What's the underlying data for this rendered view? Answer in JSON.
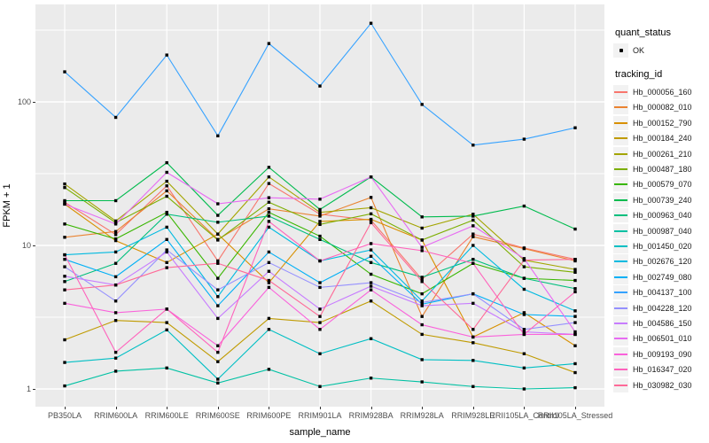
{
  "axes": {
    "y_title": "FPKM + 1",
    "x_title": "sample_name"
  },
  "legend": {
    "quant_title": "quant_status",
    "ok_label": "OK",
    "ok_marker": "black-point",
    "tracking_title": "tracking_id",
    "key_background": "#F2F2F2"
  },
  "panel": {
    "background": "#EBEBEB",
    "gridline_color": "#FFFFFF",
    "tick_label_color": "#4D4D4D",
    "point_color": "#000000"
  },
  "chart_data": {
    "type": "line",
    "title": "",
    "xlabel": "sample_name",
    "ylabel": "FPKM + 1",
    "y_scale": "log10",
    "y_breaks": [
      1,
      10,
      100
    ],
    "y_tick_labels": [
      "1",
      "10",
      "100"
    ],
    "y_minor_breaks": [
      3.162,
      31.62,
      316.2
    ],
    "ylim": [
      1,
      475
    ],
    "grid": "on",
    "legend_position": "right",
    "x_categories": [
      "PB350LA",
      "RRIM600LA",
      "RRIM600LE",
      "RRIM600SE",
      "RRIM600PE",
      "RRIM901LA",
      "RRIM928BA",
      "RRIM928LA",
      "RRIM928LE",
      "RRII105LA_Control",
      "RRII105LA_Stressed"
    ],
    "quant_status": "OK",
    "series": [
      {
        "name": "Hb_000056_160",
        "color": "#F8766D",
        "values": [
          20.0,
          11.9,
          26.0,
          7.8,
          27.0,
          16.5,
          15.0,
          5.8,
          12.0,
          9.6,
          8.0
        ]
      },
      {
        "name": "Hb_000082_010",
        "color": "#EA8331",
        "values": [
          11.4,
          12.5,
          24.0,
          11.0,
          18.0,
          16.0,
          21.6,
          3.2,
          11.5,
          9.5,
          7.8
        ]
      },
      {
        "name": "Hb_000152_790",
        "color": "#D89000",
        "values": [
          19.4,
          10.8,
          7.6,
          12.0,
          5.5,
          14.7,
          15.2,
          10.9,
          2.3,
          3.4,
          2.0
        ]
      },
      {
        "name": "Hb_000184_240",
        "color": "#C09B00",
        "values": [
          2.2,
          3.0,
          2.9,
          1.55,
          3.1,
          2.9,
          4.1,
          2.4,
          2.1,
          1.76,
          1.3
        ]
      },
      {
        "name": "Hb_000261_210",
        "color": "#A3A500",
        "values": [
          26.8,
          14.8,
          28.0,
          12.0,
          30.0,
          17.0,
          18.3,
          13.2,
          16.5,
          7.9,
          6.8
        ]
      },
      {
        "name": "Hb_000487_180",
        "color": "#7CAE00",
        "values": [
          25.3,
          14.4,
          22.0,
          10.9,
          20.0,
          14.0,
          16.6,
          10.9,
          15.0,
          7.1,
          6.5
        ]
      },
      {
        "name": "Hb_000579_070",
        "color": "#39B600",
        "values": [
          14.1,
          11.1,
          17.0,
          5.9,
          17.0,
          11.6,
          6.3,
          4.6,
          7.5,
          5.9,
          5.7
        ]
      },
      {
        "name": "Hb_000739_240",
        "color": "#00BB4E",
        "values": [
          20.5,
          20.5,
          37.7,
          16.2,
          35.0,
          17.8,
          30.0,
          15.8,
          16.0,
          18.8,
          13.0
        ]
      },
      {
        "name": "Hb_000963_040",
        "color": "#00BF7D",
        "values": [
          5.6,
          7.5,
          16.5,
          14.5,
          16.0,
          11.0,
          7.6,
          6.0,
          8.0,
          5.9,
          5.0
        ]
      },
      {
        "name": "Hb_000987_040",
        "color": "#00C1A3",
        "values": [
          1.05,
          1.33,
          1.4,
          1.1,
          1.37,
          1.04,
          1.19,
          1.12,
          1.04,
          1.0,
          1.02
        ]
      },
      {
        "name": "Hb_001450_020",
        "color": "#00BFC4",
        "values": [
          1.53,
          1.64,
          2.58,
          1.17,
          2.6,
          1.76,
          2.24,
          1.6,
          1.58,
          1.4,
          1.5
        ]
      },
      {
        "name": "Hb_002676_120",
        "color": "#00BAE0",
        "values": [
          8.6,
          9.0,
          13.4,
          4.4,
          13.4,
          7.8,
          9.3,
          4.1,
          10.0,
          4.95,
          3.5
        ]
      },
      {
        "name": "Hb_002749_080",
        "color": "#00B0F6",
        "values": [
          8.0,
          6.05,
          11.0,
          3.8,
          9.0,
          5.5,
          8.4,
          3.9,
          4.6,
          3.3,
          3.2
        ]
      },
      {
        "name": "Hb_004137_100",
        "color": "#35A2FF",
        "values": [
          162,
          78,
          212,
          58,
          255,
          129,
          353,
          96,
          50,
          55,
          66
        ]
      },
      {
        "name": "Hb_004228_120",
        "color": "#9590FF",
        "values": [
          7.1,
          4.1,
          9.3,
          4.9,
          7.6,
          5.1,
          5.5,
          4.0,
          4.6,
          2.6,
          2.9
        ]
      },
      {
        "name": "Hb_004586_150",
        "color": "#C77CFF",
        "values": [
          6.1,
          5.3,
          9.0,
          3.1,
          6.6,
          3.6,
          5.2,
          3.8,
          3.95,
          2.5,
          2.4
        ]
      },
      {
        "name": "Hb_006501_010",
        "color": "#E76BF3",
        "values": [
          19.4,
          14.1,
          32.3,
          19.5,
          21.5,
          21.0,
          30.0,
          9.7,
          13.7,
          8.1,
          2.5
        ]
      },
      {
        "name": "Hb_009193_090",
        "color": "#FA62DB",
        "values": [
          3.95,
          3.4,
          3.6,
          2.0,
          5.1,
          2.6,
          4.9,
          2.8,
          2.3,
          2.4,
          2.4
        ]
      },
      {
        "name": "Hb_016347_020",
        "color": "#FF62BC",
        "values": [
          8.6,
          1.8,
          3.6,
          1.8,
          14.7,
          7.8,
          10.3,
          9.2,
          7.5,
          2.4,
          4.75
        ]
      },
      {
        "name": "Hb_030982_030",
        "color": "#FF6A98",
        "values": [
          4.9,
          5.3,
          7.0,
          7.5,
          5.7,
          3.2,
          14.4,
          5.6,
          2.6,
          7.9,
          8.0
        ]
      }
    ]
  }
}
